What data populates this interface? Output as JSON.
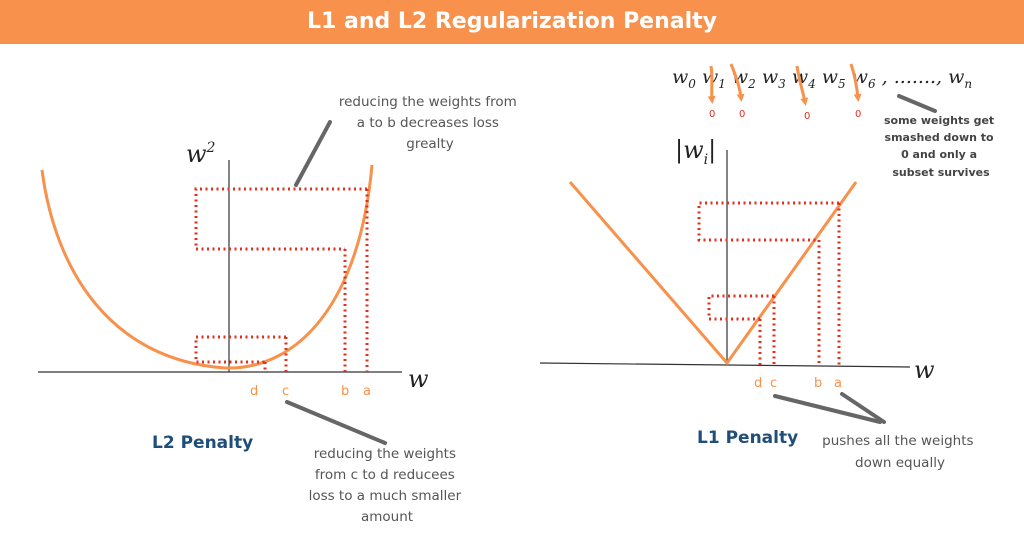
{
  "title": "L1 and L2 Regularization Penalty",
  "colors": {
    "banner": "#f7914b",
    "curve": "#f7914b",
    "dotted": "#e0301e",
    "penalty_label": "#1f4e79"
  },
  "l2": {
    "penalty_label": "L2 Penalty",
    "y_axis_label": "w",
    "y_axis_sup": "2",
    "x_axis_label": "w",
    "ticks": [
      "d",
      "c",
      "b",
      "a"
    ],
    "note_top": [
      "reducing the weights from",
      "a to b decreases loss",
      "grealty"
    ],
    "note_bottom": [
      "reducing the weights",
      "from c to d reducees",
      "loss to a much smaller",
      "amount"
    ]
  },
  "l1": {
    "penalty_label": "L1 Penalty",
    "y_axis_label": "|w",
    "y_axis_sub": "i",
    "y_axis_close": "|",
    "x_axis_label": "w",
    "ticks": [
      "d",
      "c",
      "b",
      "a"
    ],
    "weights_seq": [
      "0",
      "1",
      "2",
      "3",
      "4",
      "5",
      "6"
    ],
    "weights_tail": ", ......., ",
    "weights_last_sub": "n",
    "zeros": [
      "0",
      "0",
      "0",
      "0"
    ],
    "note_right": [
      "some weights get",
      "smashed down to",
      "0 and only a",
      "subset survives"
    ],
    "note_bottom": [
      "pushes all the weights",
      "down equally"
    ]
  }
}
